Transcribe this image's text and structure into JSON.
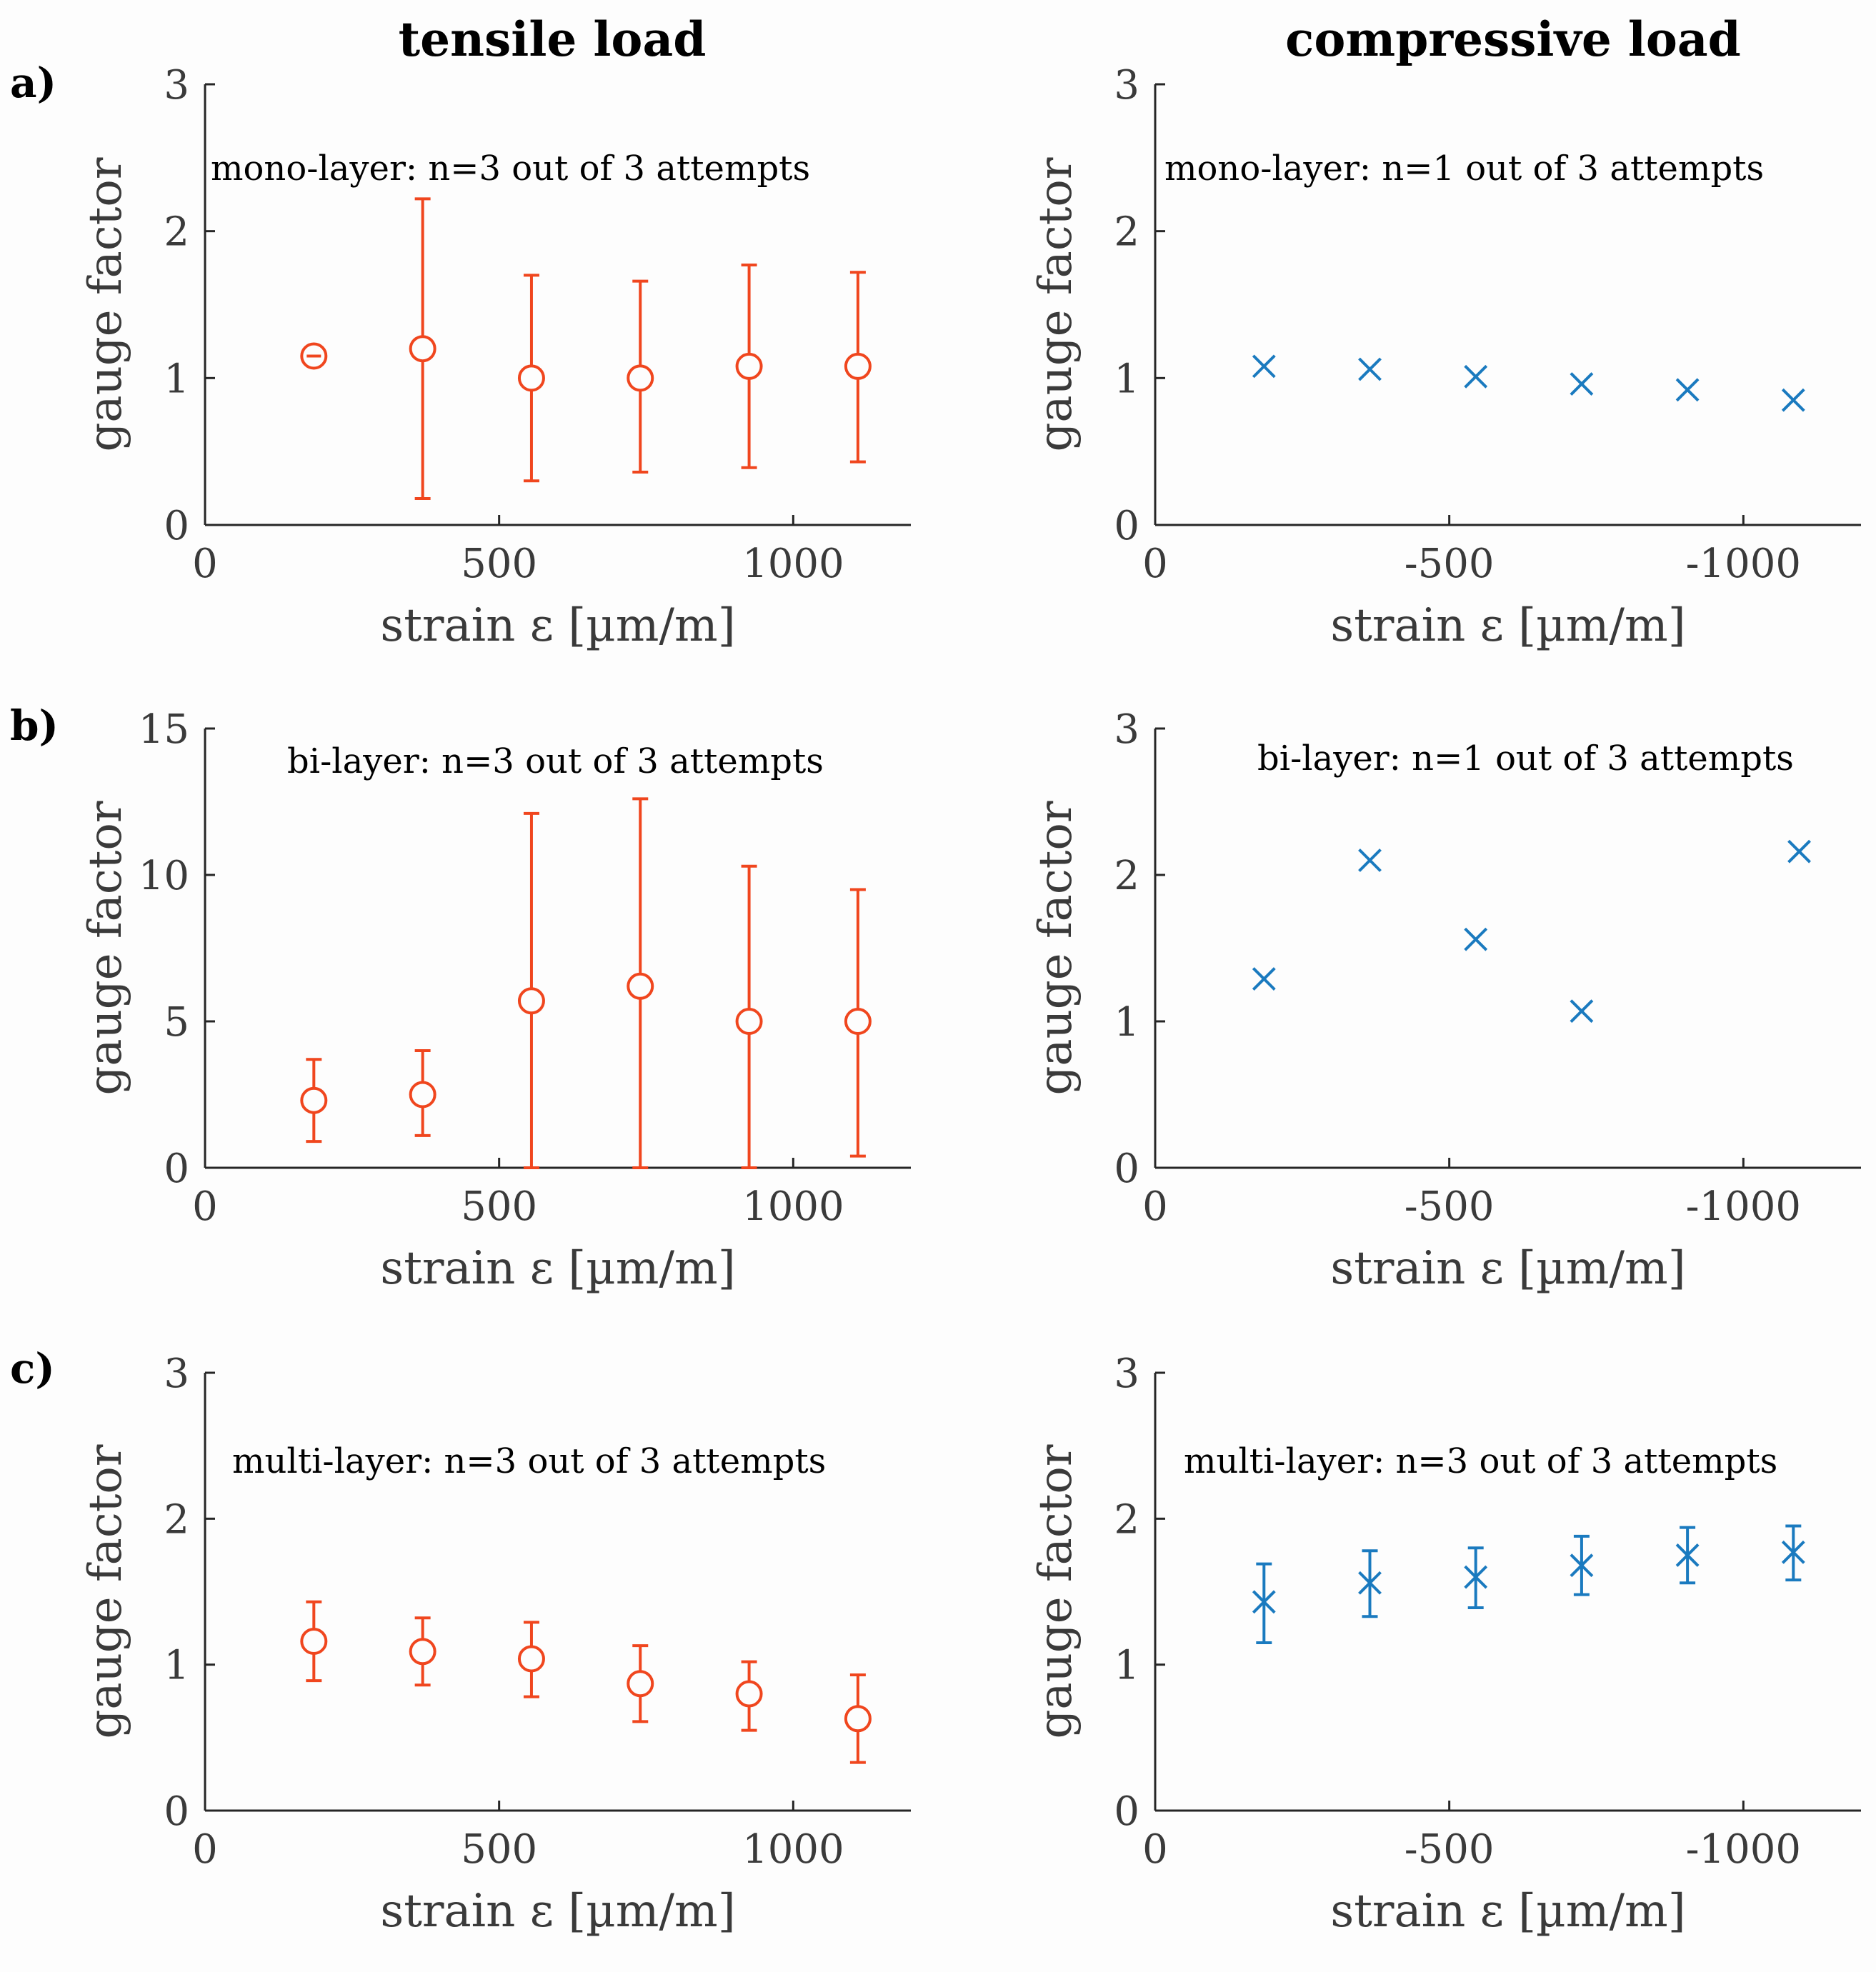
{
  "column_titles": [
    "tensile load",
    "compressive load"
  ],
  "row_labels": [
    "a)",
    "b)",
    "c)"
  ],
  "colors": {
    "tensile": "#F0461E",
    "compressive": "#1A7ABF",
    "axis": "#262626"
  },
  "chart_data": [
    {
      "id": "a-tensile",
      "type": "scatter",
      "marker": "circle",
      "color": "#F0461E",
      "annotation": "mono-layer: n=3 out of 3 attempts",
      "xlabel": "strain ε [µm/m]",
      "ylabel": "gauge factor",
      "xlim": [
        0,
        1200
      ],
      "ylim": [
        0,
        3
      ],
      "xticks": [
        0,
        500,
        1000
      ],
      "xticklabels": [
        "0",
        "500",
        "1000"
      ],
      "yticks": [
        0,
        1,
        2,
        3
      ],
      "yticklabels": [
        "0",
        "1",
        "2",
        "3"
      ],
      "points": [
        {
          "x": 185,
          "y": 1.15,
          "err_low": 1.15,
          "err_high": 1.15
        },
        {
          "x": 370,
          "y": 1.2,
          "err_low": 0.18,
          "err_high": 2.22
        },
        {
          "x": 555,
          "y": 1.0,
          "err_low": 0.3,
          "err_high": 1.7
        },
        {
          "x": 740,
          "y": 1.0,
          "err_low": 0.36,
          "err_high": 1.66
        },
        {
          "x": 925,
          "y": 1.08,
          "err_low": 0.39,
          "err_high": 1.77
        },
        {
          "x": 1110,
          "y": 1.08,
          "err_low": 0.43,
          "err_high": 1.72
        }
      ]
    },
    {
      "id": "a-compressive",
      "type": "scatter",
      "marker": "x",
      "color": "#1A7ABF",
      "annotation": "mono-layer: n=1 out of 3 attempts",
      "xlabel": "strain ε [µm/m]",
      "ylabel": "gauge factor",
      "xlim": [
        0,
        -1200
      ],
      "ylim": [
        0,
        3
      ],
      "xticks": [
        0,
        -500,
        -1000
      ],
      "xticklabels": [
        "0",
        "-500",
        "-1000"
      ],
      "yticks": [
        0,
        1,
        2,
        3
      ],
      "yticklabels": [
        "0",
        "1",
        "2",
        "3"
      ],
      "points": [
        {
          "x": -185,
          "y": 1.08
        },
        {
          "x": -365,
          "y": 1.06
        },
        {
          "x": -545,
          "y": 1.01
        },
        {
          "x": -725,
          "y": 0.96
        },
        {
          "x": -905,
          "y": 0.92
        },
        {
          "x": -1085,
          "y": 0.85
        }
      ]
    },
    {
      "id": "b-tensile",
      "type": "scatter",
      "marker": "circle",
      "color": "#F0461E",
      "annotation": "bi-layer: n=3 out of 3 attempts",
      "xlabel": "strain ε [µm/m]",
      "ylabel": "gauge factor",
      "xlim": [
        0,
        1200
      ],
      "ylim": [
        0,
        15
      ],
      "xticks": [
        0,
        500,
        1000
      ],
      "xticklabels": [
        "0",
        "500",
        "1000"
      ],
      "yticks": [
        0,
        5,
        10,
        15
      ],
      "yticklabels": [
        "0",
        "5",
        "10",
        "15"
      ],
      "points": [
        {
          "x": 185,
          "y": 2.3,
          "err_low": 0.9,
          "err_high": 3.7
        },
        {
          "x": 370,
          "y": 2.5,
          "err_low": 1.1,
          "err_high": 4.0
        },
        {
          "x": 555,
          "y": 5.7,
          "err_low": 0.0,
          "err_high": 12.1
        },
        {
          "x": 740,
          "y": 6.2,
          "err_low": 0.0,
          "err_high": 12.6
        },
        {
          "x": 925,
          "y": 5.0,
          "err_low": 0.0,
          "err_high": 10.3
        },
        {
          "x": 1110,
          "y": 5.0,
          "err_low": 0.4,
          "err_high": 9.5
        }
      ]
    },
    {
      "id": "b-compressive",
      "type": "scatter",
      "marker": "x",
      "color": "#1A7ABF",
      "annotation": "bi-layer: n=1 out of 3 attempts",
      "xlabel": "strain ε [µm/m]",
      "ylabel": "gauge factor",
      "xlim": [
        0,
        -1200
      ],
      "ylim": [
        0,
        3
      ],
      "xticks": [
        0,
        -500,
        -1000
      ],
      "xticklabels": [
        "0",
        "-500",
        "-1000"
      ],
      "yticks": [
        0,
        1,
        2,
        3
      ],
      "yticklabels": [
        "0",
        "1",
        "2",
        "3"
      ],
      "points": [
        {
          "x": -185,
          "y": 1.29
        },
        {
          "x": -365,
          "y": 2.1
        },
        {
          "x": -545,
          "y": 1.56
        },
        {
          "x": -725,
          "y": 1.07
        },
        {
          "x": -1095,
          "y": 2.16
        }
      ]
    },
    {
      "id": "c-tensile",
      "type": "scatter",
      "marker": "circle",
      "color": "#F0461E",
      "annotation": "multi-layer: n=3 out of 3 attempts",
      "xlabel": "strain ε [µm/m]",
      "ylabel": "gauge factor",
      "xlim": [
        0,
        1200
      ],
      "ylim": [
        0,
        3
      ],
      "xticks": [
        0,
        500,
        1000
      ],
      "xticklabels": [
        "0",
        "500",
        "1000"
      ],
      "yticks": [
        0,
        1,
        2,
        3
      ],
      "yticklabels": [
        "0",
        "1",
        "2",
        "3"
      ],
      "points": [
        {
          "x": 185,
          "y": 1.16,
          "err_low": 0.89,
          "err_high": 1.43
        },
        {
          "x": 370,
          "y": 1.09,
          "err_low": 0.86,
          "err_high": 1.32
        },
        {
          "x": 555,
          "y": 1.04,
          "err_low": 0.78,
          "err_high": 1.29
        },
        {
          "x": 740,
          "y": 0.87,
          "err_low": 0.61,
          "err_high": 1.13
        },
        {
          "x": 925,
          "y": 0.8,
          "err_low": 0.55,
          "err_high": 1.02
        },
        {
          "x": 1110,
          "y": 0.63,
          "err_low": 0.33,
          "err_high": 0.93
        }
      ]
    },
    {
      "id": "c-compressive",
      "type": "scatter",
      "marker": "x",
      "color": "#1A7ABF",
      "annotation": "multi-layer: n=3 out of 3 attempts",
      "xlabel": "strain ε [µm/m]",
      "ylabel": "gauge factor",
      "xlim": [
        0,
        -1200
      ],
      "ylim": [
        0,
        3
      ],
      "xticks": [
        0,
        -500,
        -1000
      ],
      "xticklabels": [
        "0",
        "-500",
        "-1000"
      ],
      "yticks": [
        0,
        1,
        2,
        3
      ],
      "yticklabels": [
        "0",
        "1",
        "2",
        "3"
      ],
      "points": [
        {
          "x": -185,
          "y": 1.43,
          "err_low": 1.15,
          "err_high": 1.69
        },
        {
          "x": -365,
          "y": 1.56,
          "err_low": 1.33,
          "err_high": 1.78
        },
        {
          "x": -545,
          "y": 1.6,
          "err_low": 1.39,
          "err_high": 1.8
        },
        {
          "x": -725,
          "y": 1.68,
          "err_low": 1.48,
          "err_high": 1.88
        },
        {
          "x": -905,
          "y": 1.75,
          "err_low": 1.56,
          "err_high": 1.94
        },
        {
          "x": -1085,
          "y": 1.77,
          "err_low": 1.58,
          "err_high": 1.95
        }
      ]
    }
  ]
}
